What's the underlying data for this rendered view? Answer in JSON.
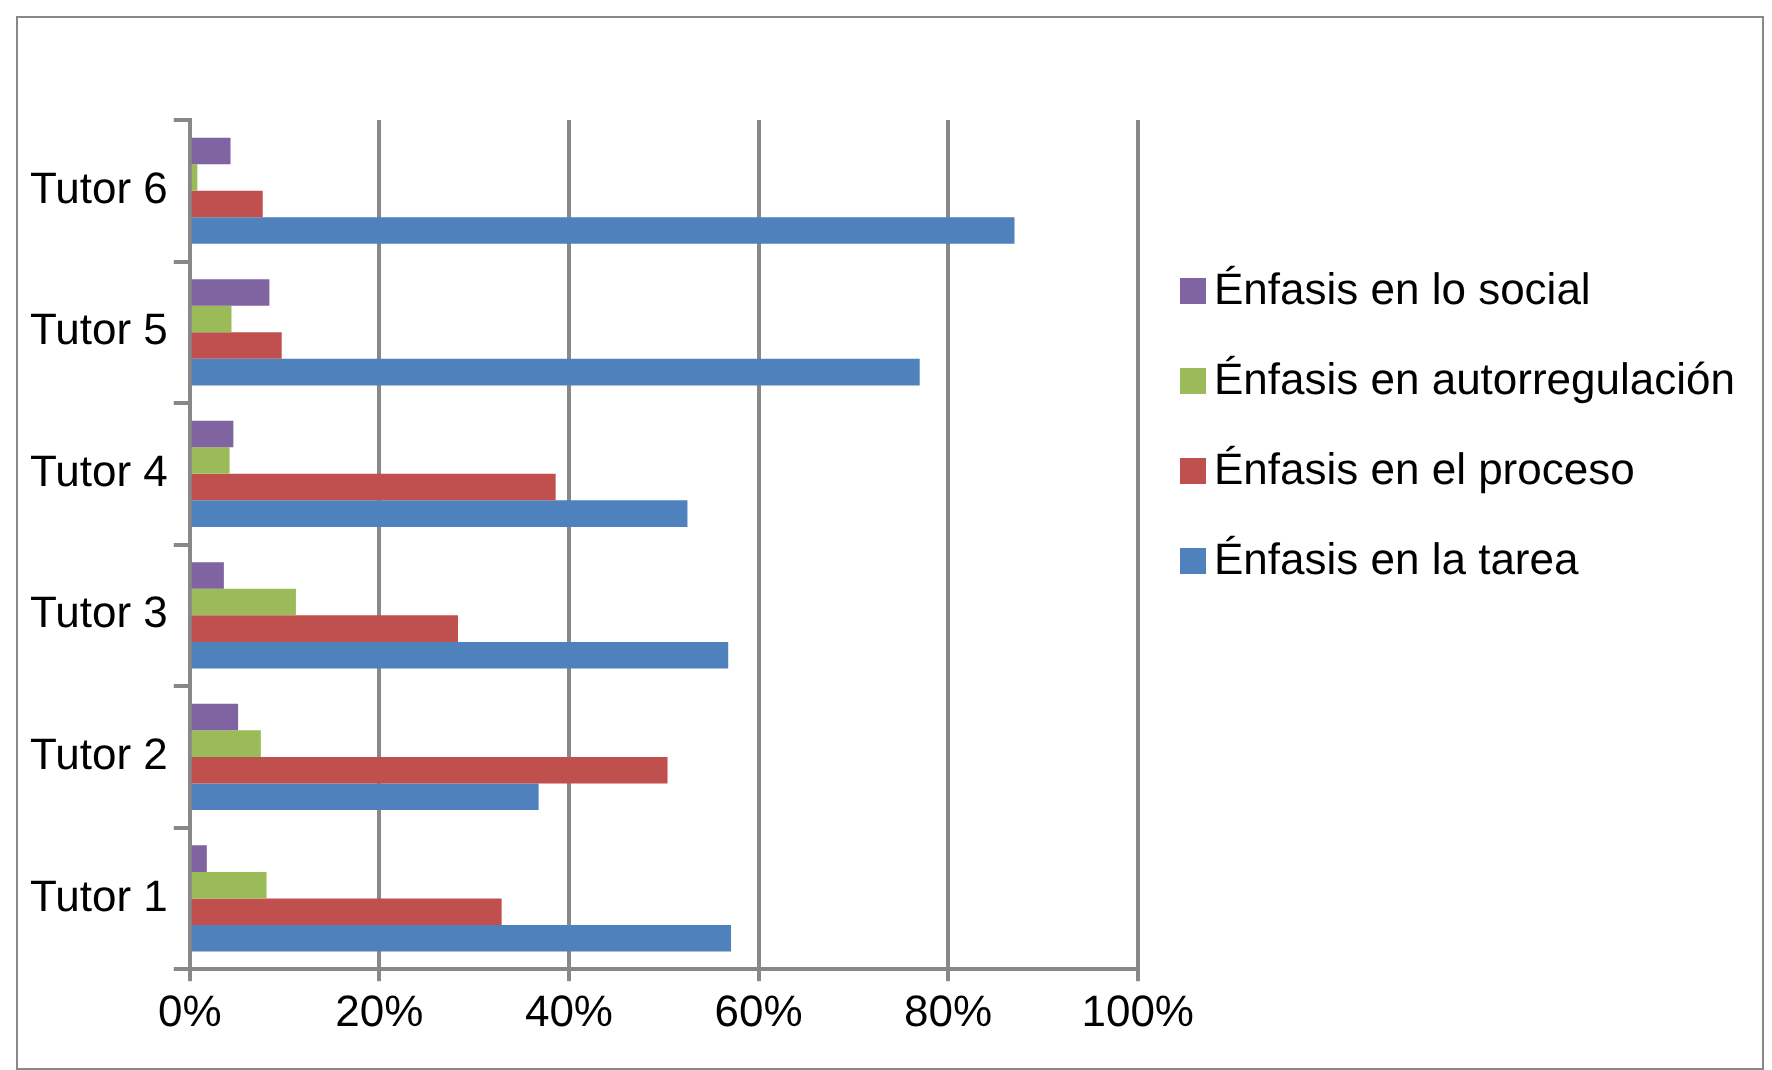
{
  "chart_data": {
    "type": "bar",
    "orientation": "horizontal",
    "categories": [
      "Tutor 6",
      "Tutor 5",
      "Tutor 4",
      "Tutor 3",
      "Tutor 2",
      "Tutor 1"
    ],
    "series": [
      {
        "name": "Énfasis en lo social",
        "color": "#8064a2",
        "values": [
          4.3,
          8.4,
          4.6,
          3.6,
          5.1,
          1.8
        ]
      },
      {
        "name": "Énfasis en autorregulación",
        "color": "#9bbb59",
        "values": [
          0.8,
          4.4,
          4.2,
          11.2,
          7.5,
          8.1
        ]
      },
      {
        "name": "Énfasis en el proceso",
        "color": "#c0504d",
        "values": [
          7.7,
          9.7,
          38.6,
          28.3,
          50.4,
          32.9
        ]
      },
      {
        "name": "Énfasis en la tarea",
        "color": "#4f81bd",
        "values": [
          87.0,
          77.0,
          52.5,
          56.8,
          36.8,
          57.1
        ]
      }
    ],
    "xlim": [
      0,
      100
    ],
    "xticks": [
      {
        "value": 0,
        "label": "0%"
      },
      {
        "value": 20,
        "label": "20%"
      },
      {
        "value": 40,
        "label": "40%"
      },
      {
        "value": 60,
        "label": "60%"
      },
      {
        "value": 80,
        "label": "80%"
      },
      {
        "value": 100,
        "label": "100%"
      }
    ],
    "grid": "x",
    "legend": "right"
  }
}
